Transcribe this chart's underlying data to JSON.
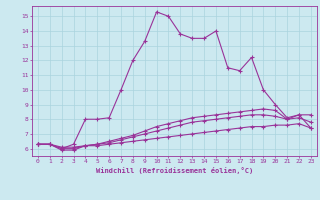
{
  "xlabel": "Windchill (Refroidissement éolien,°C)",
  "bg_color": "#cce9f0",
  "grid_color": "#aad4de",
  "line_color": "#993399",
  "xlim": [
    -0.5,
    23.5
  ],
  "ylim": [
    5.5,
    15.7
  ],
  "xticks": [
    0,
    1,
    2,
    3,
    4,
    5,
    6,
    7,
    8,
    9,
    10,
    11,
    12,
    13,
    14,
    15,
    16,
    17,
    18,
    19,
    20,
    21,
    22,
    23
  ],
  "yticks": [
    6,
    7,
    8,
    9,
    10,
    11,
    12,
    13,
    14,
    15
  ],
  "series": [
    {
      "x": [
        0,
        1,
        2,
        3,
        4,
        5,
        6,
        7,
        8,
        9,
        10,
        11,
        12,
        13,
        14,
        15,
        16,
        17,
        18,
        19,
        20,
        21,
        22,
        23
      ],
      "y": [
        6.3,
        6.3,
        6.0,
        6.3,
        8.0,
        8.0,
        8.1,
        10.0,
        12.0,
        13.3,
        15.3,
        15.0,
        13.8,
        13.5,
        13.5,
        14.0,
        11.5,
        11.3,
        12.2,
        10.0,
        9.0,
        8.1,
        8.3,
        8.3
      ]
    },
    {
      "x": [
        0,
        1,
        2,
        3,
        4,
        5,
        6,
        7,
        8,
        9,
        10,
        11,
        12,
        13,
        14,
        15,
        16,
        17,
        18,
        19,
        20,
        21,
        22,
        23
      ],
      "y": [
        6.3,
        6.3,
        5.9,
        5.9,
        6.2,
        6.3,
        6.5,
        6.7,
        6.9,
        7.2,
        7.5,
        7.7,
        7.9,
        8.1,
        8.2,
        8.3,
        8.4,
        8.5,
        8.6,
        8.7,
        8.6,
        8.0,
        8.3,
        7.4
      ]
    },
    {
      "x": [
        0,
        1,
        2,
        3,
        4,
        5,
        6,
        7,
        8,
        9,
        10,
        11,
        12,
        13,
        14,
        15,
        16,
        17,
        18,
        19,
        20,
        21,
        22,
        23
      ],
      "y": [
        6.3,
        6.3,
        6.0,
        6.0,
        6.2,
        6.3,
        6.4,
        6.6,
        6.8,
        7.0,
        7.2,
        7.4,
        7.6,
        7.8,
        7.9,
        8.0,
        8.1,
        8.2,
        8.3,
        8.3,
        8.2,
        8.0,
        8.1,
        7.8
      ]
    },
    {
      "x": [
        0,
        1,
        2,
        3,
        4,
        5,
        6,
        7,
        8,
        9,
        10,
        11,
        12,
        13,
        14,
        15,
        16,
        17,
        18,
        19,
        20,
        21,
        22,
        23
      ],
      "y": [
        6.3,
        6.3,
        6.1,
        6.1,
        6.2,
        6.2,
        6.3,
        6.4,
        6.5,
        6.6,
        6.7,
        6.8,
        6.9,
        7.0,
        7.1,
        7.2,
        7.3,
        7.4,
        7.5,
        7.5,
        7.6,
        7.6,
        7.7,
        7.4
      ]
    }
  ]
}
